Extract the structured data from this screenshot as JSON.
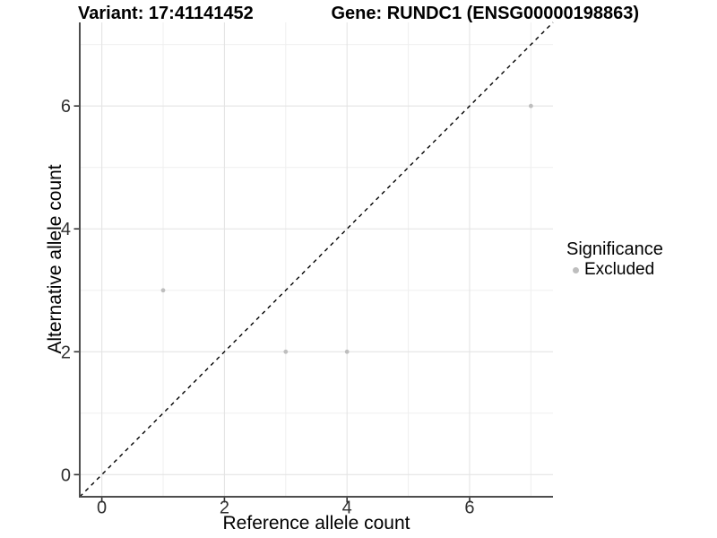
{
  "titles": {
    "variant": "Variant: 17:41141452",
    "gene": "Gene: RUNDC1 (ENSG00000198863)"
  },
  "chart_data": {
    "type": "scatter",
    "title_left": "Variant: 17:41141452",
    "title_right": "Gene: RUNDC1 (ENSG00000198863)",
    "xlabel": "Reference allele count",
    "ylabel": "Alternative allele count",
    "xlim": [
      -0.36,
      7.36
    ],
    "ylim": [
      -0.36,
      7.36
    ],
    "x_ticks": [
      0,
      2,
      4,
      6
    ],
    "y_ticks": [
      0,
      2,
      4,
      6
    ],
    "x_minor_gridlines": [
      1,
      3,
      5,
      7
    ],
    "y_minor_gridlines": [
      1,
      3,
      5,
      7
    ],
    "grid": true,
    "series": [
      {
        "name": "Excluded",
        "color": "#bebebe",
        "points": [
          [
            1,
            3
          ],
          [
            3,
            2
          ],
          [
            4,
            2
          ],
          [
            7,
            6
          ]
        ]
      }
    ],
    "reference_line": {
      "kind": "identity",
      "style": "dashed",
      "color": "#000000"
    },
    "legend": {
      "position": "right",
      "title": "Significance",
      "entries": [
        {
          "label": "Excluded",
          "color": "#bebebe"
        }
      ]
    },
    "style_colors": {
      "major_grid": "#e4e4e4",
      "minor_grid": "#efefef",
      "axis_line": "#4d4d4d",
      "tick_mark": "#333333",
      "tick_label": "#303030",
      "background": "#ffffff"
    }
  }
}
